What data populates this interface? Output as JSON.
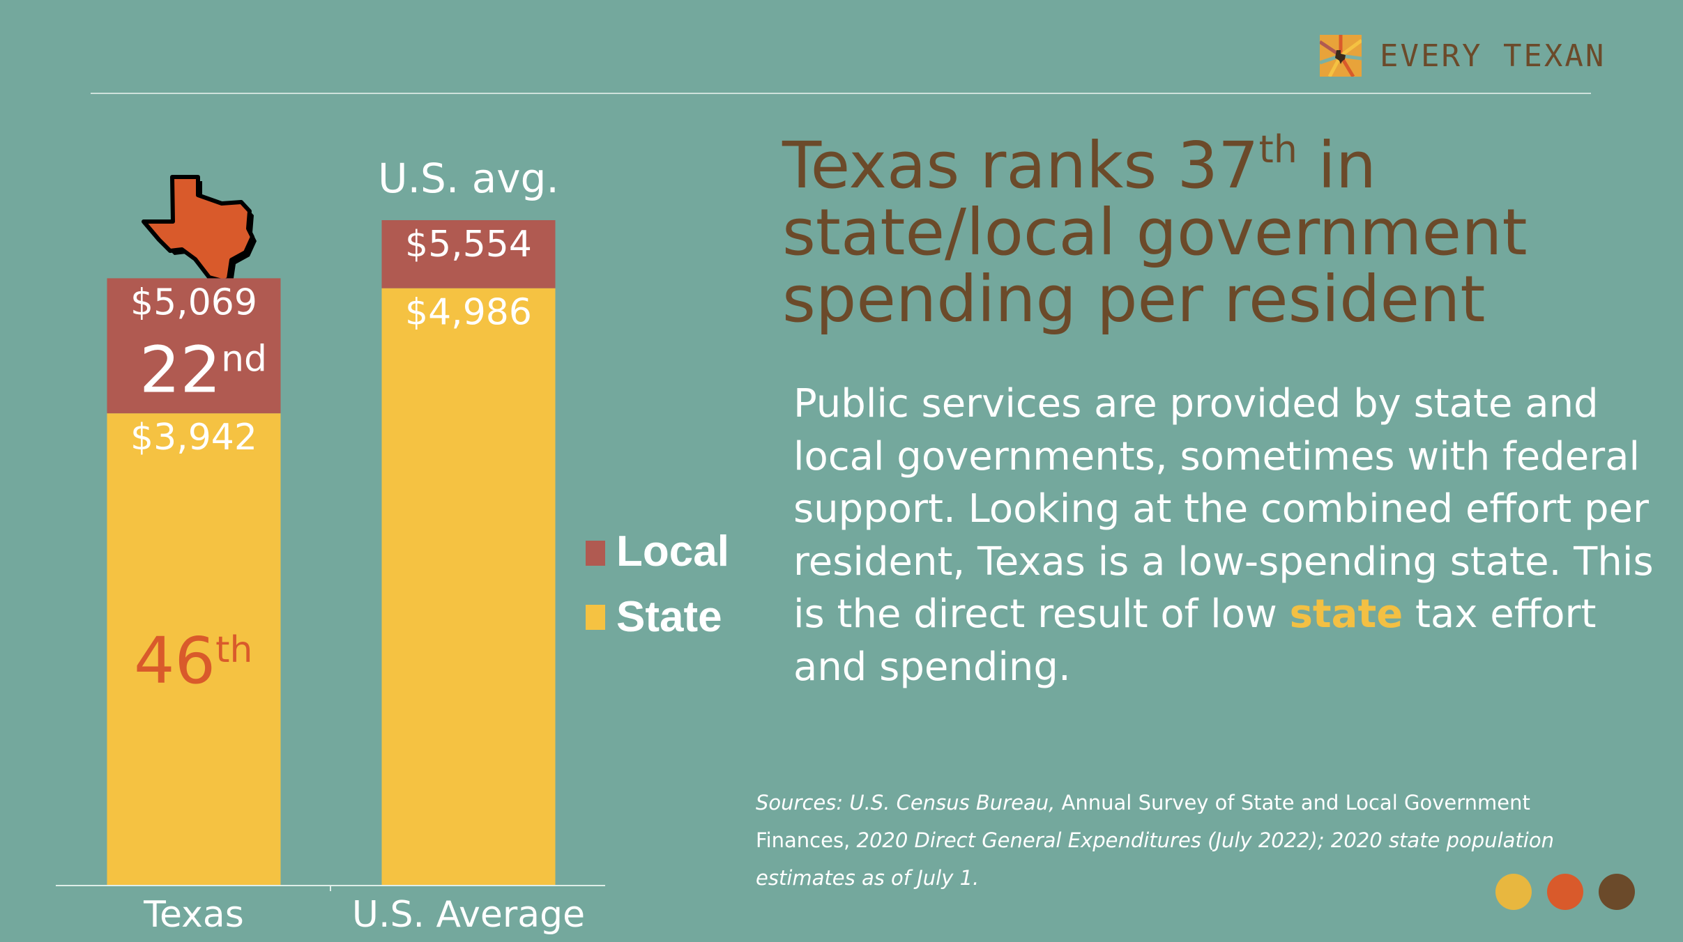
{
  "brand": {
    "name": "EVERY TEXAN",
    "icon": "sunburst-texas-logo-icon",
    "colors": {
      "red": "#b05a51",
      "yellow": "#f5c242",
      "orange": "#d95a2b",
      "brown": "#6b4a2a"
    }
  },
  "headline": {
    "part1": "Texas ranks 37",
    "sup": "th",
    "part2": " in state/local government spending per resident"
  },
  "body": {
    "before": "Public services are provided by state and local governments, sometimes with federal support. Looking at the combined effort per resident, Texas is a low-spending state. This is the direct result of low ",
    "highlight": "state",
    "after": " tax effort and spending."
  },
  "sources": {
    "part1": "Sources: U.S. Census Bureau, ",
    "part2": "Annual Survey of State and Local Government Finances, ",
    "part3": "2020 Direct General Expenditures (July 2022); 2020 state population estimates as of July 1."
  },
  "dots": [
    "#e8b73f",
    "#d95a2b",
    "#6b4a2a"
  ],
  "chart_data": {
    "type": "bar",
    "stacked": true,
    "categories": [
      "Texas",
      "U.S. Average"
    ],
    "series": [
      {
        "name": "State",
        "values": [
          3942,
          4986
        ],
        "color": "#f5c242"
      },
      {
        "name": "Local",
        "values": [
          1127,
          568
        ],
        "color": "#b05a51"
      }
    ],
    "totals": [
      5069,
      5554
    ],
    "bar_labels": {
      "state": [
        "$3,942",
        "$4,986"
      ],
      "total": [
        "$5,069",
        "$5,554"
      ]
    },
    "ranks": {
      "local": {
        "num": "22",
        "sup": "nd"
      },
      "state": {
        "num": "46",
        "sup": "th"
      }
    },
    "column_title": "U.S. avg.",
    "legend": [
      "Local",
      "State"
    ],
    "legend_position": "right",
    "ylim": [
      0,
      5554
    ],
    "grid": false
  }
}
